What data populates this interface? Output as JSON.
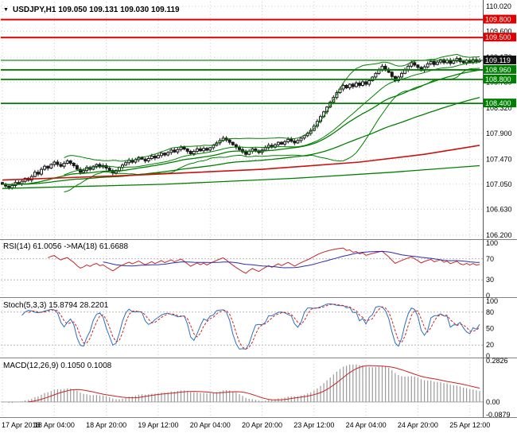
{
  "icons": {
    "title_marker": "▼"
  },
  "colors": {
    "grid": "#c9c9c9",
    "separator": "#808080",
    "axis_border": "#555555",
    "candle": "#1a1a1a",
    "ma_green": "#008000",
    "trend_red": "#cc1111",
    "level_red": "#e00000",
    "level_green": "#008000",
    "current_box": "#111111",
    "rsi_line": "#c62828",
    "rsi_ma_line": "#2b2bb0",
    "stoch_main": "#2d6fc2",
    "stoch_signal": "#cc2222",
    "macd_hist": "#9a9a9a",
    "macd_signal": "#cc2222"
  },
  "chart_data": {
    "type": "candlestick",
    "symbol": "USDJPY",
    "period": "H1",
    "title": "USDJPY,H1 109.050 109.131 109.030 109.119",
    "quote": {
      "open": "109.050",
      "high": "109.131",
      "low": "109.030",
      "close": "109.119"
    },
    "x_labels": [
      "17 Apr 2018",
      "18 Apr 04:00",
      "18 Apr 20:00",
      "19 Apr 12:00",
      "20 Apr 04:00",
      "20 Apr 20:00",
      "23 Apr 12:00",
      "24 Apr 04:00",
      "24 Apr 20:00",
      "25 Apr 12:00"
    ],
    "x_label_step": 16,
    "price_axis": {
      "max": 110.02,
      "min": 106.2,
      "ticks": [
        "110.020",
        "109.600",
        "109.170",
        "108.750",
        "108.320",
        "107.900",
        "107.470",
        "107.050",
        "106.630",
        "106.200"
      ]
    },
    "levels": [
      {
        "price": 109.8,
        "label": "109.800",
        "color": "#e00000",
        "box": "#e00000",
        "width": 2
      },
      {
        "price": 109.5,
        "label": "109.500",
        "color": "#e00000",
        "box": "#e00000",
        "width": 2
      },
      {
        "price": 109.119,
        "label": "109.119",
        "color": "#008000",
        "box": "#111111",
        "width": 1.2
      },
      {
        "price": 108.96,
        "label": "108.960",
        "color": "#008000",
        "box": "#008000",
        "width": 1.8
      },
      {
        "price": 108.8,
        "label": "108.800",
        "color": "#008000",
        "box": "#008000",
        "width": 1.8
      },
      {
        "price": 108.4,
        "label": "108.400",
        "color": "#008000",
        "box": "#008000",
        "width": 1.8
      }
    ],
    "closes": [
      107.05,
      107.02,
      106.99,
      107.03,
      107.08,
      107.06,
      107.1,
      107.15,
      107.12,
      107.18,
      107.25,
      107.22,
      107.3,
      107.35,
      107.32,
      107.38,
      107.42,
      107.38,
      107.35,
      107.4,
      107.44,
      107.4,
      107.36,
      107.3,
      107.25,
      107.28,
      107.33,
      107.3,
      107.35,
      107.38,
      107.34,
      107.36,
      107.32,
      107.28,
      107.24,
      107.28,
      107.33,
      107.37,
      107.41,
      107.45,
      107.42,
      107.46,
      107.5,
      107.47,
      107.44,
      107.48,
      107.52,
      107.49,
      107.53,
      107.57,
      107.54,
      107.58,
      107.62,
      107.59,
      107.63,
      107.67,
      107.64,
      107.6,
      107.56,
      107.6,
      107.64,
      107.61,
      107.65,
      107.62,
      107.66,
      107.7,
      107.74,
      107.78,
      107.82,
      107.79,
      107.75,
      107.71,
      107.67,
      107.63,
      107.59,
      107.55,
      107.6,
      107.64,
      107.61,
      107.58,
      107.62,
      107.66,
      107.7,
      107.67,
      107.71,
      107.75,
      107.72,
      107.76,
      107.8,
      107.77,
      107.74,
      107.78,
      107.82,
      107.86,
      107.9,
      107.95,
      108.02,
      108.1,
      108.18,
      108.26,
      108.34,
      108.42,
      108.5,
      108.58,
      108.64,
      108.7,
      108.66,
      108.72,
      108.68,
      108.74,
      108.7,
      108.76,
      108.72,
      108.78,
      108.84,
      108.9,
      108.96,
      109.02,
      108.97,
      108.92,
      108.85,
      108.78,
      108.84,
      108.9,
      108.96,
      109.02,
      109.08,
      109.04,
      109.0,
      108.95,
      109.01,
      109.06,
      109.1,
      109.05,
      109.09,
      109.13,
      109.08,
      109.12,
      109.07,
      109.11,
      109.15,
      109.1,
      109.08,
      109.12,
      109.09,
      109.13,
      109.1,
      109.119
    ],
    "overlays": {
      "bollinger_period": 20,
      "bollinger_dev": 2,
      "ema_fast": 34,
      "ema_slow": 89,
      "trend_red": [
        [
          0,
          107.12
        ],
        [
          40,
          107.2
        ],
        [
          80,
          107.3
        ],
        [
          110,
          107.42
        ],
        [
          130,
          107.55
        ],
        [
          147,
          107.7
        ]
      ],
      "slow_green": [
        [
          0,
          106.98
        ],
        [
          50,
          107.05
        ],
        [
          90,
          107.15
        ],
        [
          120,
          107.25
        ],
        [
          147,
          107.36
        ]
      ]
    },
    "panes": [
      {
        "name": "rsi",
        "label": "RSI(14) 61.0056 ->MA(18) 61.6688",
        "values": {
          "rsi": "61.0056",
          "ma": "61.6688"
        },
        "ticks": [
          "100",
          "70",
          "30",
          "0"
        ],
        "levels": [
          70,
          30
        ]
      },
      {
        "name": "stoch",
        "label": "Stoch(5,3,3) 15.8794 28.2201",
        "values": {
          "main": "15.8794",
          "signal": "28.2201"
        },
        "ticks": [
          "100",
          "80",
          "50",
          "20",
          "0"
        ],
        "levels": [
          80,
          20
        ]
      },
      {
        "name": "macd",
        "label": "MACD(12,26,9) 0.1050 0.1008",
        "values": {
          "main": "0.1050",
          "signal": "0.1008"
        },
        "ticks": [
          "0.2826",
          "0.00",
          "-0.0879"
        ],
        "levels": [
          0
        ],
        "range": [
          -0.0879,
          0.2826
        ]
      }
    ]
  }
}
